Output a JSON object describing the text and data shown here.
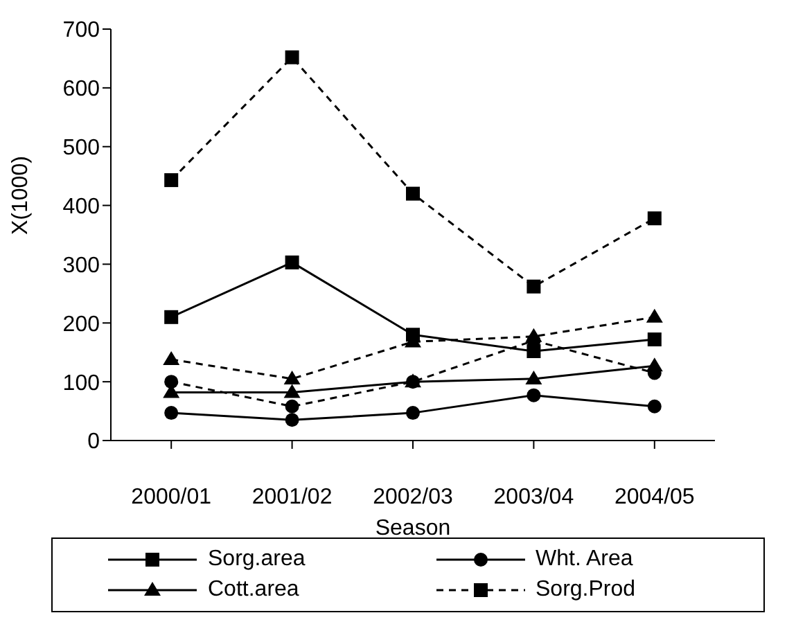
{
  "chart_data": {
    "type": "line",
    "xlabel": "Season",
    "ylabel": "X(1000)",
    "categories": [
      "2000/01",
      "2001/02",
      "2002/03",
      "2003/04",
      "2004/05"
    ],
    "ylim": [
      0,
      700
    ],
    "yticks": [
      0,
      100,
      200,
      300,
      400,
      500,
      600,
      700
    ],
    "grid": false,
    "legend": "bottom",
    "series": [
      {
        "name": "Sorg.area",
        "color": "#000000",
        "marker": "square",
        "line_style": "solid",
        "values": [
          210,
          303,
          180,
          152,
          172
        ]
      },
      {
        "name": "Wht. Area",
        "color": "#000000",
        "marker": "circle",
        "line_style": "solid",
        "values": [
          47,
          35,
          47,
          77,
          58
        ]
      },
      {
        "name": "Cott.area",
        "color": "#000000",
        "marker": "triangle",
        "line_style": "solid",
        "values": [
          82,
          82,
          100,
          105,
          127
        ]
      },
      {
        "name": "Sorg.Prod",
        "color": "#000000",
        "marker": "square",
        "line_style": "dashed",
        "values": [
          443,
          652,
          420,
          262,
          378
        ]
      },
      {
        "color": "#000000",
        "marker": "circle",
        "line_style": "dashed",
        "values": [
          100,
          58,
          100,
          170,
          115
        ]
      },
      {
        "color": "#000000",
        "marker": "triangle",
        "line_style": "dashed",
        "values": [
          138,
          105,
          168,
          177,
          210
        ]
      }
    ]
  }
}
